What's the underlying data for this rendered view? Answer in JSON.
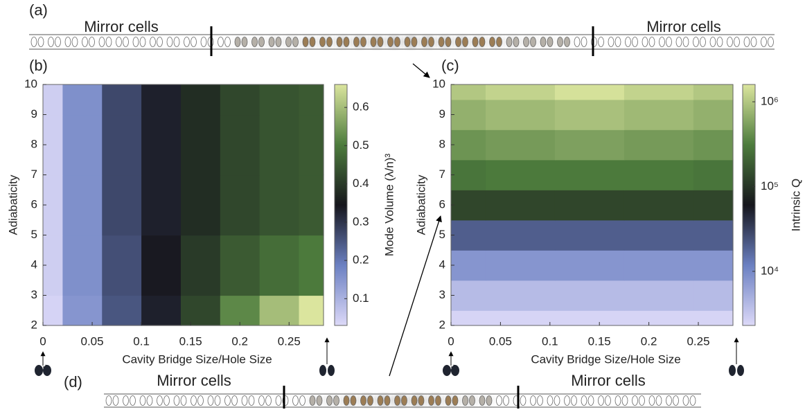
{
  "strips": [
    {
      "label": "(a)",
      "left": "Mirror cells",
      "right": "Mirror cells"
    },
    {
      "label": "(d)",
      "left": "Mirror cells",
      "right": "Mirror cells"
    }
  ],
  "chart_data": [
    {
      "type": "heatmap",
      "panel_label": "(b)",
      "xlabel": "Cavity Bridge Size/Hole Size",
      "ylabel": "Adiabaticity",
      "colorbar_label": "Mode Volume (λ/n)³",
      "x": [
        0,
        0.04,
        0.08,
        0.12,
        0.16,
        0.2,
        0.24,
        0.28
      ],
      "y": [
        2,
        4,
        6,
        8,
        10
      ],
      "z": [
        [
          0.04,
          0.15,
          0.25,
          0.33,
          0.42,
          0.52,
          0.6,
          0.66
        ],
        [
          0.05,
          0.16,
          0.26,
          0.34,
          0.4,
          0.45,
          0.48,
          0.5
        ],
        [
          0.05,
          0.16,
          0.27,
          0.33,
          0.38,
          0.42,
          0.44,
          0.45
        ],
        [
          0.05,
          0.16,
          0.27,
          0.33,
          0.38,
          0.42,
          0.44,
          0.45
        ],
        [
          0.05,
          0.16,
          0.27,
          0.33,
          0.38,
          0.42,
          0.44,
          0.45
        ]
      ],
      "xlim": [
        0,
        0.285
      ],
      "ylim": [
        2,
        10
      ],
      "xticks": [
        0,
        0.05,
        0.1,
        0.15,
        0.2,
        0.25
      ],
      "yticks": [
        2,
        3,
        4,
        5,
        6,
        7,
        8,
        9,
        10
      ],
      "clim": [
        0.03,
        0.66
      ],
      "cticks": [
        0.1,
        0.2,
        0.3,
        0.4,
        0.5,
        0.6
      ],
      "color_log": false,
      "colormap": [
        "#dcd9f8",
        "#6b80c2",
        "#16161c",
        "#4d7c3d",
        "#dbe59e"
      ]
    },
    {
      "type": "heatmap",
      "panel_label": "(c)",
      "xlabel": "Cavity Bridge Size/Hole Size",
      "ylabel": "Adiabaticity",
      "colorbar_label": "Intrinsic Q",
      "x": [
        0,
        0.07,
        0.14,
        0.21,
        0.28
      ],
      "y": [
        2,
        3,
        4,
        5,
        6,
        7,
        8,
        9,
        10
      ],
      "z": [
        [
          2500,
          2500,
          2500,
          2500,
          2500
        ],
        [
          4000,
          4000,
          4000,
          4000,
          4000
        ],
        [
          8000,
          8000,
          8000,
          8000,
          8000
        ],
        [
          20000,
          20000,
          20000,
          20000,
          20000
        ],
        [
          130000,
          130000,
          130000,
          130000,
          130000
        ],
        [
          280000,
          300000,
          300000,
          300000,
          280000
        ],
        [
          450000,
          500000,
          550000,
          500000,
          450000
        ],
        [
          700000,
          800000,
          900000,
          800000,
          700000
        ],
        [
          1000000,
          1200000,
          1500000,
          1200000,
          1000000
        ]
      ],
      "xlim": [
        0,
        0.285
      ],
      "ylim": [
        2,
        10
      ],
      "xticks": [
        0,
        0.05,
        0.1,
        0.15,
        0.2,
        0.25
      ],
      "yticks": [
        2,
        3,
        4,
        5,
        6,
        7,
        8,
        9,
        10
      ],
      "clim": [
        2300,
        1600000
      ],
      "color_log": true,
      "cticks": [
        {
          "value": 10000,
          "label": "10⁴"
        },
        {
          "value": 100000,
          "label": "10⁵"
        },
        {
          "value": 1000000,
          "label": "10⁶"
        }
      ],
      "colormap": [
        "#dcd9f8",
        "#6b80c2",
        "#16161c",
        "#4d7c3d",
        "#dbe59e"
      ]
    }
  ]
}
